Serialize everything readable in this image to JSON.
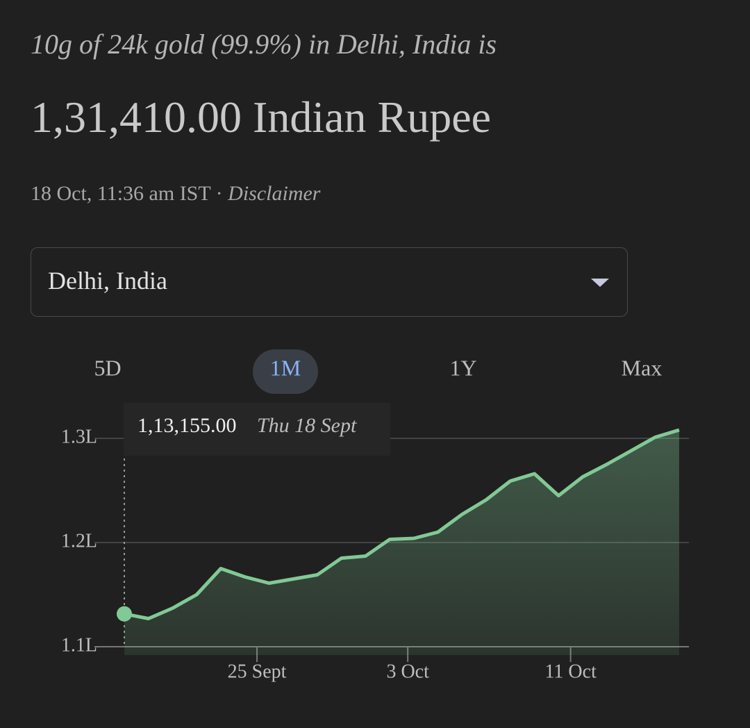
{
  "header": {
    "subtitle": "10g of 24k gold (99.9%) in Delhi, India is",
    "price": "1,31,410.00 Indian Rupee",
    "timestamp": "18 Oct, 11:36 am IST",
    "separator": "·",
    "disclaimer": "Disclaimer"
  },
  "location_select": {
    "value": "Delhi, India"
  },
  "range_tabs": {
    "tabs": [
      "5D",
      "1M",
      "1Y",
      "Max"
    ],
    "selected": "1M"
  },
  "chart_data": {
    "type": "area",
    "categories": [
      null,
      null,
      null,
      null,
      null,
      null,
      null,
      null,
      null,
      null,
      null,
      null,
      null,
      null,
      null,
      null,
      null,
      null,
      null,
      null,
      null,
      null,
      null,
      null
    ],
    "series": [
      {
        "color": "#81c995",
        "values": [
          113155,
          112700,
          113700,
          115000,
          117500,
          116700,
          116100,
          116500,
          116900,
          118500,
          118700,
          120300,
          120400,
          121000,
          122700,
          124100,
          125900,
          126600,
          124500,
          126300,
          127500,
          128800,
          130100,
          130800
        ]
      }
    ],
    "xlim": [
      0,
      23
    ],
    "xticks": [
      {
        "value": 5.5,
        "label": "25 Sept"
      },
      {
        "value": 11.75,
        "label": "3 Oct"
      },
      {
        "value": 18.5,
        "label": "11 Oct"
      }
    ],
    "ylim": [
      110000,
      130000
    ],
    "yticks": [
      {
        "value": 110000,
        "label": "1.1L"
      },
      {
        "value": 120000,
        "label": "1.2L"
      },
      {
        "value": 130000,
        "label": "1.3L"
      }
    ],
    "grid": true,
    "tooltip": {
      "value_label": "1,13,155.00",
      "date": "Thu 18 Sept"
    }
  }
}
